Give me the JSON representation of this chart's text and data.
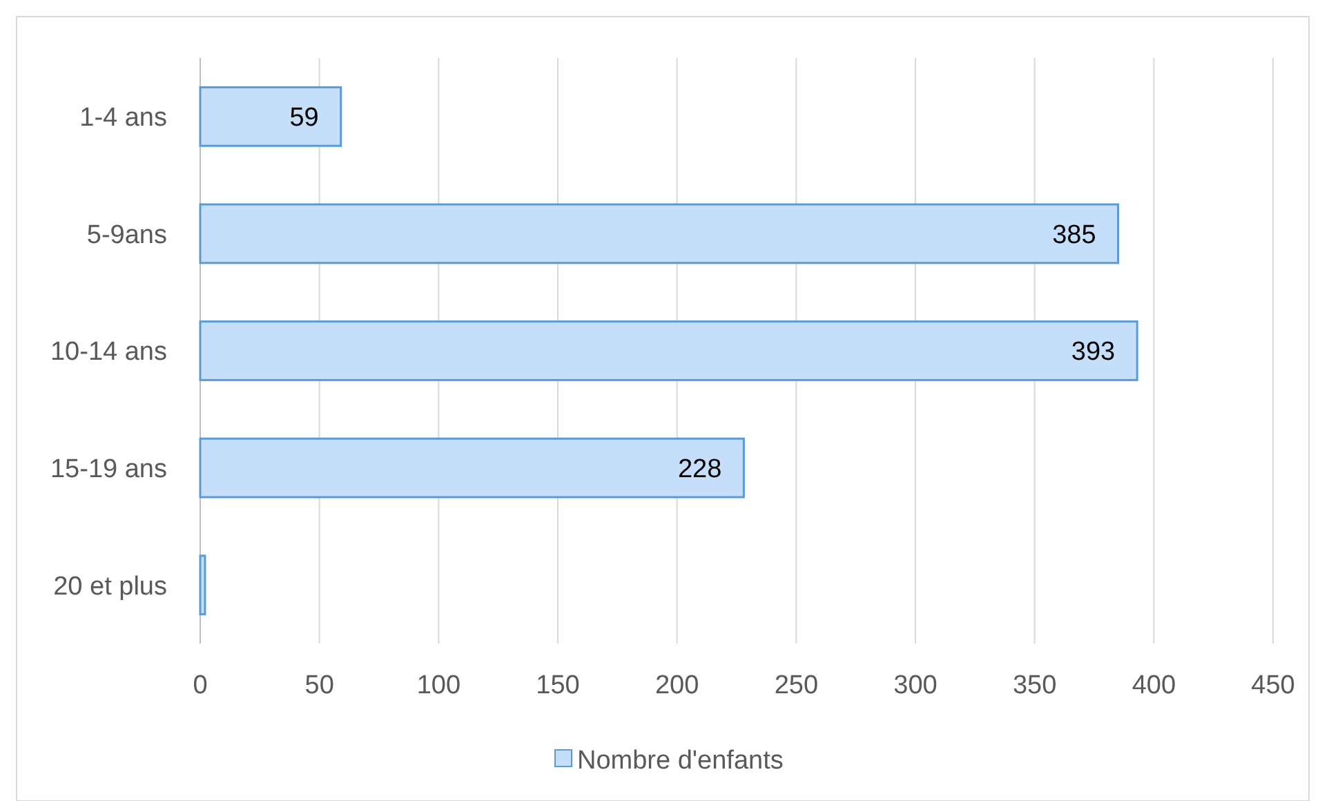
{
  "chart_data": {
    "type": "bar",
    "orientation": "horizontal",
    "categories": [
      "1-4 ans",
      "5-9ans",
      "10-14 ans",
      "15-19 ans",
      "20 et plus"
    ],
    "series": [
      {
        "name": "Nombre d'enfants",
        "color": "#c5defa",
        "values": [
          59,
          385,
          393,
          228,
          2
        ],
        "value_labels": [
          "59",
          "385",
          "393",
          "228",
          null
        ]
      }
    ],
    "xlim": [
      0,
      450
    ],
    "xticks": [
      0,
      50,
      100,
      150,
      200,
      250,
      300,
      350,
      400,
      450
    ],
    "grid": "x",
    "legend": "bottom"
  }
}
